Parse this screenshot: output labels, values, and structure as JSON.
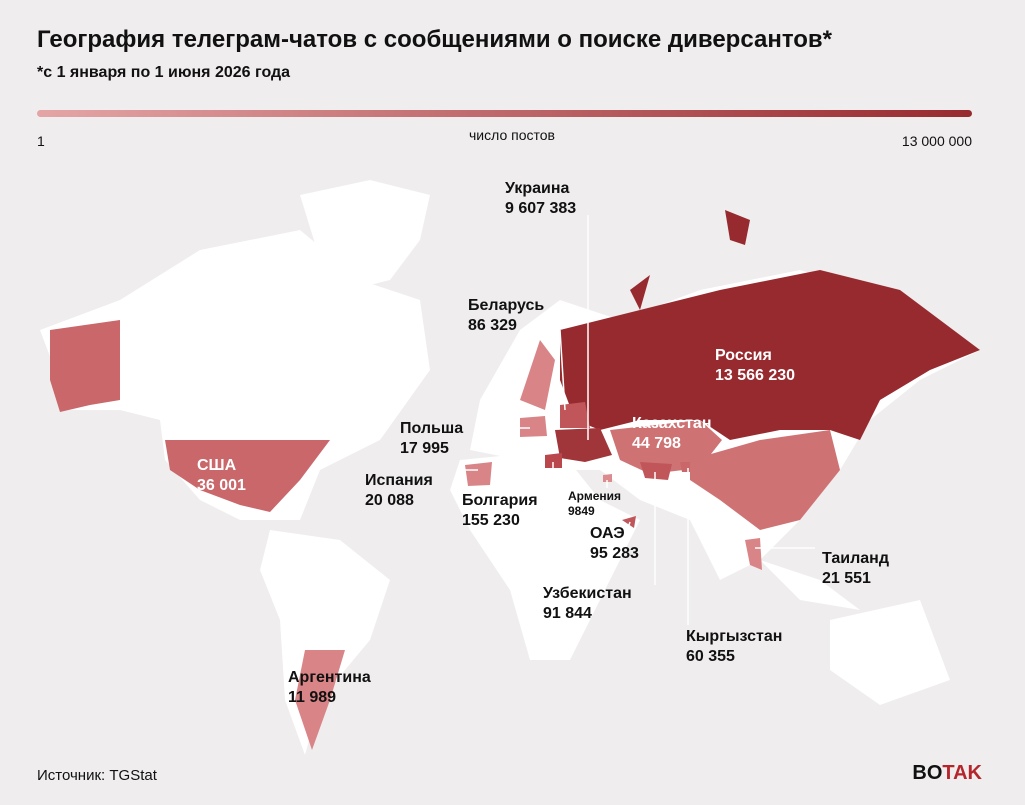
{
  "header": {
    "title": "География телеграм-чатов с сообщениями о поиске диверсантов*",
    "subtitle": "*с 1 января по 1 июня 2026 года"
  },
  "legend": {
    "min": "1",
    "caption": "число постов",
    "max": "13 000 000"
  },
  "countries": [
    {
      "name": "Россия",
      "value": "13 566 230",
      "color": "#972a2f"
    },
    {
      "name": "Украина",
      "value": "9 607 383",
      "color": "#a0353a"
    },
    {
      "name": "Казахстан",
      "value": "44 798",
      "color": "#cf7274"
    },
    {
      "name": "США",
      "value": "36 001",
      "color": "#c9676b"
    },
    {
      "name": "Беларусь",
      "value": "86 329",
      "color": "#c0565a"
    },
    {
      "name": "Польша",
      "value": "17 995",
      "color": "#d98587"
    },
    {
      "name": "Испания",
      "value": "20 088",
      "color": "#d98587"
    },
    {
      "name": "Болгария",
      "value": "155 230",
      "color": "#b9474c"
    },
    {
      "name": "Армения",
      "value": "9849",
      "color": "#dc8c8e"
    },
    {
      "name": "ОАЭ",
      "value": "95 283",
      "color": "#c0565a"
    },
    {
      "name": "Узбекистан",
      "value": "91 844",
      "color": "#c0565a"
    },
    {
      "name": "Кыргызстан",
      "value": "60 355",
      "color": "#c9676b"
    },
    {
      "name": "Таиланд",
      "value": "21 551",
      "color": "#d98587"
    },
    {
      "name": "Аргентина",
      "value": "11 989",
      "color": "#d98587"
    }
  ],
  "footer": {
    "source": "Источник: TGStat",
    "logo_a": "BO",
    "logo_b": "TAK"
  }
}
